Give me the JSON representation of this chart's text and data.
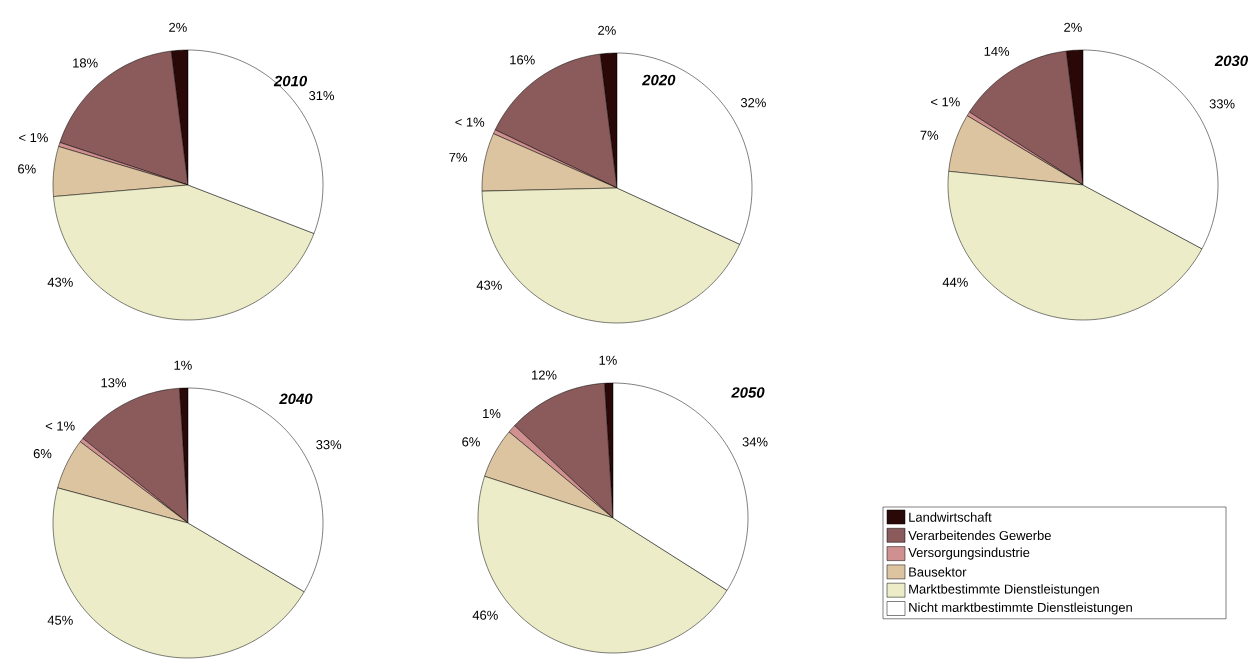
{
  "chart_data": [
    {
      "type": "pie",
      "title": "2010",
      "values": [
        2,
        18,
        0.5,
        6,
        43,
        31
      ],
      "value_labels": [
        "2%",
        "18%",
        "< 1%",
        "6%",
        "43%",
        "31%"
      ],
      "colors": [
        "#2a0808",
        "#8b5a5a",
        "#d09090",
        "#dcc4a0",
        "#ececc8",
        "#ffffff"
      ]
    },
    {
      "type": "pie",
      "title": "2020",
      "values": [
        2,
        16,
        0.5,
        7,
        43,
        32
      ],
      "value_labels": [
        "2%",
        "16%",
        "< 1%",
        "7%",
        "43%",
        "32%"
      ],
      "colors": [
        "#2a0808",
        "#8b5a5a",
        "#d09090",
        "#dcc4a0",
        "#ececc8",
        "#ffffff"
      ]
    },
    {
      "type": "pie",
      "title": "2030",
      "values": [
        2,
        14,
        0.5,
        7,
        44,
        33
      ],
      "value_labels": [
        "2%",
        "14%",
        "< 1%",
        "7%",
        "44%",
        "33%"
      ],
      "colors": [
        "#2a0808",
        "#8b5a5a",
        "#d09090",
        "#dcc4a0",
        "#ececc8",
        "#ffffff"
      ]
    },
    {
      "type": "pie",
      "title": "2040",
      "values": [
        1,
        13,
        0.5,
        6,
        45,
        33
      ],
      "value_labels": [
        "1%",
        "13%",
        "< 1%",
        "6%",
        "45%",
        "33%"
      ],
      "colors": [
        "#2a0808",
        "#8b5a5a",
        "#d09090",
        "#dcc4a0",
        "#ececc8",
        "#ffffff"
      ]
    },
    {
      "type": "pie",
      "title": "2050",
      "categories": [
        "Landwirtschaft",
        "Verarbeitendes Gewerbe",
        "Versorgungsindustrie",
        "Bausektor",
        "Marktbestimmte Dienstleistungen",
        "Nicht marktbestimmte Dienstleistungen"
      ],
      "values": [
        1,
        12,
        1,
        6,
        46,
        34
      ],
      "value_labels": [
        "1%",
        "12%",
        "1%",
        "6%",
        "46%",
        "34%"
      ],
      "colors": [
        "#2a0808",
        "#8b5a5a",
        "#d09090",
        "#dcc4a0",
        "#ececc8",
        "#ffffff"
      ],
      "legend": "right"
    }
  ]
}
